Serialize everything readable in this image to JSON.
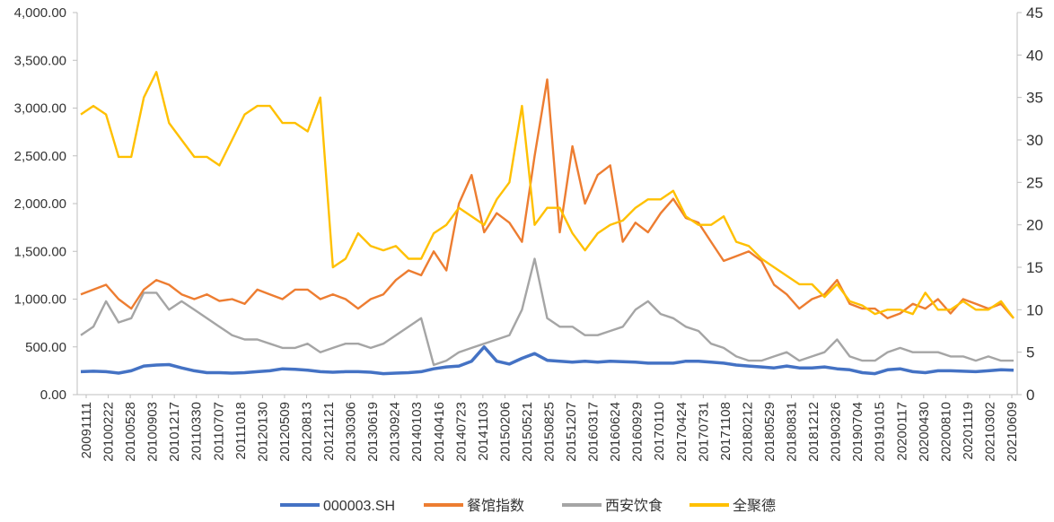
{
  "chart_data": {
    "type": "line",
    "grid": false,
    "legend_position": "bottom",
    "y_left": {
      "min": 0,
      "max": 4000,
      "ticks": [
        0,
        500,
        1000,
        1500,
        2000,
        2500,
        3000,
        3500,
        4000
      ],
      "tick_labels": [
        "0.00",
        "500.00",
        "1,000.00",
        "1,500.00",
        "2,000.00",
        "2,500.00",
        "3,000.00",
        "3,500.00",
        "4,000.00"
      ]
    },
    "y_right": {
      "min": 0,
      "max": 45,
      "ticks": [
        0,
        5,
        10,
        15,
        20,
        25,
        30,
        35,
        40,
        45
      ],
      "tick_labels": [
        "0",
        "5",
        "10",
        "15",
        "20",
        "25",
        "30",
        "35",
        "40",
        "45"
      ]
    },
    "x_tick_labels": [
      "20091111",
      "20100222",
      "20100528",
      "20100903",
      "20101217",
      "20110330",
      "20110707",
      "20111018",
      "20120130",
      "20120509",
      "20120813",
      "20121121",
      "20130306",
      "20130619",
      "20130924",
      "20140103",
      "20140416",
      "20140723",
      "20141103",
      "20150206",
      "20150521",
      "20150825",
      "20151207",
      "20160317",
      "20160624",
      "20160929",
      "20170110",
      "20170424",
      "20170731",
      "20171108",
      "20180212",
      "20180529",
      "20180831",
      "20181212",
      "20190326",
      "20190704",
      "20191015",
      "20200117",
      "20200430",
      "20200810",
      "20201119",
      "20210302",
      "20210609"
    ],
    "series": [
      {
        "name": "000003.SH",
        "axis": "left",
        "color": "#4472C4",
        "values": [
          240,
          245,
          240,
          225,
          250,
          300,
          310,
          315,
          280,
          250,
          230,
          230,
          225,
          230,
          240,
          250,
          270,
          265,
          255,
          240,
          235,
          240,
          240,
          235,
          220,
          225,
          230,
          240,
          270,
          290,
          300,
          350,
          500,
          350,
          320,
          380,
          430,
          360,
          350,
          340,
          350,
          340,
          350,
          345,
          340,
          330,
          330,
          330,
          350,
          350,
          340,
          330,
          310,
          300,
          290,
          280,
          300,
          280,
          280,
          290,
          270,
          260,
          230,
          220,
          260,
          270,
          240,
          230,
          250,
          250,
          245,
          240,
          250,
          260,
          255
        ]
      },
      {
        "name": "餐馆指数",
        "axis": "left",
        "color": "#ED7D31",
        "values": [
          1050,
          1100,
          1150,
          1000,
          900,
          1100,
          1200,
          1150,
          1050,
          1000,
          1050,
          980,
          1000,
          950,
          1100,
          1050,
          1000,
          1100,
          1100,
          1000,
          1050,
          1000,
          900,
          1000,
          1050,
          1200,
          1300,
          1250,
          1500,
          1300,
          2000,
          2300,
          1700,
          1900,
          1800,
          1600,
          2500,
          3300,
          1700,
          2600,
          2000,
          2300,
          2400,
          1600,
          1800,
          1700,
          1900,
          2050,
          1850,
          1800,
          1600,
          1400,
          1450,
          1500,
          1400,
          1150,
          1050,
          900,
          1000,
          1050,
          1200,
          950,
          900,
          900,
          800,
          850,
          950,
          900,
          1000,
          850,
          1000,
          950,
          900,
          950,
          800
        ]
      },
      {
        "name": "西安饮食",
        "axis": "right",
        "color": "#A5A5A5",
        "values": [
          7,
          8,
          11,
          8.5,
          9,
          12,
          12,
          10,
          11,
          10,
          9,
          8,
          7,
          6.5,
          6.5,
          6,
          5.5,
          5.5,
          6,
          5,
          5.5,
          6,
          6,
          5.5,
          6,
          7,
          8,
          9,
          3.5,
          4,
          5,
          5.5,
          6,
          6.5,
          7,
          10,
          16,
          9,
          8,
          8,
          7,
          7,
          7.5,
          8,
          10,
          11,
          9.5,
          9,
          8,
          7.5,
          6,
          5.5,
          4.5,
          4,
          4,
          4.5,
          5,
          4,
          4.5,
          5,
          6.5,
          4.5,
          4,
          4,
          5,
          5.5,
          5,
          5,
          5,
          4.5,
          4.5,
          4,
          4.5,
          4,
          4
        ]
      },
      {
        "name": "全聚德",
        "axis": "right",
        "color": "#FFC000",
        "values": [
          33,
          34,
          33,
          28,
          28,
          35,
          38,
          32,
          30,
          28,
          28,
          27,
          30,
          33,
          34,
          34,
          32,
          32,
          31,
          35,
          15,
          16,
          19,
          17.5,
          17,
          17.5,
          16,
          16,
          19,
          20,
          22,
          21,
          20,
          23,
          25,
          34,
          20,
          22,
          22,
          19,
          17,
          19,
          20,
          20.5,
          22,
          23,
          23,
          24,
          21,
          20,
          20,
          21,
          18,
          17.5,
          16,
          15,
          14,
          13,
          13,
          11.5,
          13,
          11,
          10.5,
          9.5,
          10,
          10,
          9.5,
          12,
          10,
          10,
          11,
          10,
          10,
          11,
          9
        ]
      }
    ]
  }
}
